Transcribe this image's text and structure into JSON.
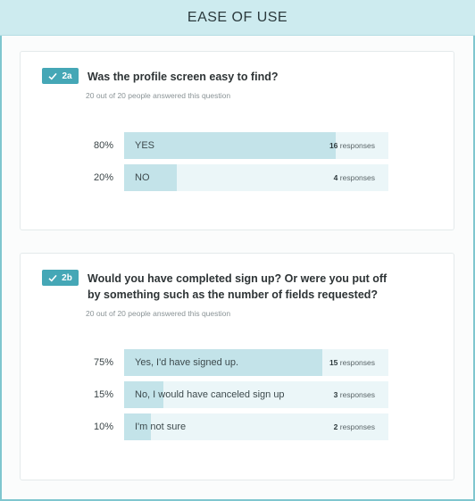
{
  "header": {
    "title": "EASE OF USE"
  },
  "questions": [
    {
      "badge": "2a",
      "title": "Was the profile screen easy to find?",
      "meta": "20 out of 20 people answered this question",
      "answers": [
        {
          "percent_label": "80%",
          "percent": 80,
          "label": "YES",
          "count": "16",
          "count_suffix": "responses"
        },
        {
          "percent_label": "20%",
          "percent": 20,
          "label": "NO",
          "count": "4",
          "count_suffix": "responses"
        }
      ]
    },
    {
      "badge": "2b",
      "title": "Would you have completed sign up? Or were you put off by something such as the number of fields requested?",
      "meta": "20 out of 20 people answered this question",
      "answers": [
        {
          "percent_label": "75%",
          "percent": 75,
          "label": "Yes, I'd have signed up.",
          "count": "15",
          "count_suffix": "responses"
        },
        {
          "percent_label": "15%",
          "percent": 15,
          "label": "No, I would have canceled sign up",
          "count": "3",
          "count_suffix": "responses"
        },
        {
          "percent_label": "10%",
          "percent": 10,
          "label": "I'm not sure",
          "count": "2",
          "count_suffix": "responses"
        }
      ]
    }
  ],
  "colors": {
    "accent": "#45a7b6",
    "bar_fill": "#c3e3e9",
    "bar_track": "#ebf6f8",
    "header_bg": "#cdebef"
  },
  "icons": {
    "badge_icon": "check-icon"
  }
}
